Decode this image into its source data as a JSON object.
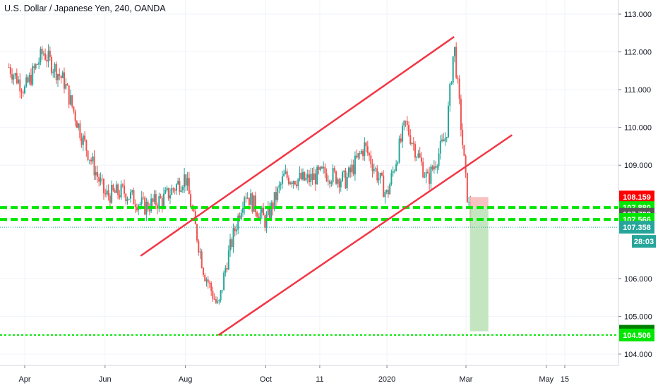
{
  "title": "U.S. Dollar / Japanese Yen, 240, OANDA",
  "chart_data": {
    "type": "candlestick",
    "title": "U.S. Dollar / Japanese Yen, 240, OANDA",
    "xlabel": "",
    "ylabel": "",
    "ylim": [
      103.85,
      113.3
    ],
    "y_ticks": [
      "113.000",
      "112.000",
      "111.000",
      "110.000",
      "109.000",
      "106.000",
      "105.000",
      "104.000"
    ],
    "x_ticks": [
      "Apr",
      "Jun",
      "Aug",
      "Oct",
      "11",
      "2020",
      "Mar",
      "May",
      "15"
    ],
    "series": [
      {
        "name": "",
        "kind": "close",
        "x": [
          "Mar 20",
          "Apr 1",
          "Apr 15",
          "May 1",
          "May 15",
          "Jun 1",
          "Jun 15",
          "Jul 1",
          "Jul 15",
          "Aug 1",
          "Aug 15",
          "Aug 26",
          "Sep 1",
          "Sep 15",
          "Oct 1",
          "Oct 15",
          "Nov 1",
          "Nov 15",
          "Dec 1",
          "Dec 15",
          "Jan 1",
          "Jan 15",
          "Feb 1",
          "Feb 15",
          "Feb 21",
          "Mar 1",
          "Mar 5"
        ],
        "y": [
          111.6,
          111.0,
          112.0,
          111.2,
          109.7,
          108.2,
          108.3,
          107.9,
          108.1,
          108.7,
          106.2,
          105.2,
          106.4,
          108.3,
          107.5,
          108.7,
          108.6,
          108.8,
          108.6,
          109.5,
          108.2,
          110.1,
          108.6,
          109.8,
          112.2,
          108.5,
          107.4
        ]
      }
    ],
    "trendlines": [
      {
        "name": "",
        "color": "#f23645",
        "points": [
          [
            "Jul 1",
            106.6
          ],
          [
            "Feb 21",
            112.4
          ]
        ]
      },
      {
        "name": "",
        "color": "#f23645",
        "points": [
          [
            "Aug 26",
            104.5
          ],
          [
            "Apr 1",
            109.8
          ]
        ]
      }
    ],
    "horizontal_levels": [
      107.88,
      107.566,
      104.506
    ],
    "price_labels": [
      {
        "value": "108.159",
        "color": "#ff0000"
      },
      {
        "value": "107.880",
        "color": "#00e600"
      },
      {
        "value": "107.702",
        "color": "#555555"
      },
      {
        "value": "107.566",
        "color": "#00e600"
      },
      {
        "value": "107.358",
        "color": "#26a69a"
      },
      {
        "value": "28:03",
        "color": "#26a69a"
      },
      {
        "value": "104.605",
        "color": "#008000"
      },
      {
        "value": "104.506",
        "color": "#00e600"
      }
    ],
    "position": {
      "entry": 107.88,
      "stop": 108.159,
      "target": 104.605
    },
    "grid": true
  }
}
